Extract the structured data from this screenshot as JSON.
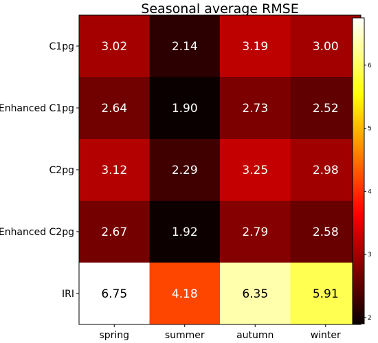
{
  "chart_data": {
    "type": "heatmap",
    "title": "Seasonal average RMSE",
    "rows": [
      "C1pg",
      "Enhanced C1pg",
      "C2pg",
      "Enhanced C2pg",
      "IRI"
    ],
    "columns": [
      "spring",
      "summer",
      "autumn",
      "winter"
    ],
    "values": [
      [
        3.02,
        2.14,
        3.19,
        3.0
      ],
      [
        2.64,
        1.9,
        2.73,
        2.52
      ],
      [
        3.12,
        2.29,
        3.25,
        2.98
      ],
      [
        2.67,
        1.92,
        2.79,
        2.58
      ],
      [
        6.75,
        4.18,
        6.35,
        5.91
      ]
    ],
    "labels": [
      [
        "3.02",
        "2.14",
        "3.19",
        "3.00"
      ],
      [
        "2.64",
        "1.90",
        "2.73",
        "2.52"
      ],
      [
        "3.12",
        "2.29",
        "3.25",
        "2.98"
      ],
      [
        "2.67",
        "1.92",
        "2.79",
        "2.58"
      ],
      [
        "6.75",
        "4.18",
        "6.35",
        "5.91"
      ]
    ],
    "colormap": "hot",
    "colorbar": {
      "range": [
        1.9,
        6.75
      ],
      "ticks": [
        2,
        3,
        4,
        5,
        6
      ],
      "tick_labels": [
        "2",
        "3",
        "4",
        "5",
        "6"
      ]
    },
    "xlabel": "",
    "ylabel": ""
  }
}
